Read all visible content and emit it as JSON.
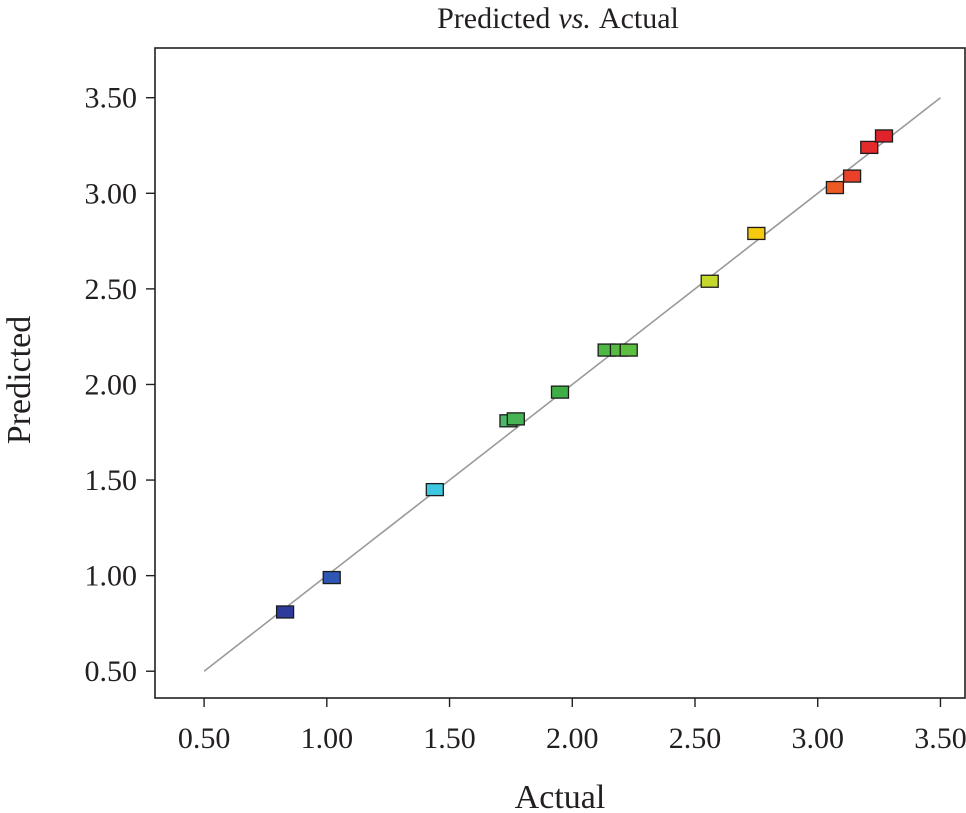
{
  "chart_data": {
    "type": "scatter",
    "title": "Predicted",
    "title_italic": "vs.",
    "title_suffix": "Actual",
    "xlabel": "Actual",
    "ylabel": "Predicted",
    "xlim": [
      0.3,
      3.6
    ],
    "ylim": [
      0.36,
      3.76
    ],
    "xticks": [
      "0.50",
      "1.00",
      "1.50",
      "2.00",
      "2.50",
      "3.00",
      "3.50"
    ],
    "yticks": [
      "0.50",
      "1.00",
      "1.50",
      "2.00",
      "2.50",
      "3.00",
      "3.50"
    ],
    "grid": false,
    "reference_line": {
      "from": [
        0.5,
        0.5
      ],
      "to": [
        3.5,
        3.5
      ],
      "color": "#9a9a9a"
    },
    "points": [
      {
        "x": 0.83,
        "y": 0.81,
        "color": "#2e3a9c"
      },
      {
        "x": 1.02,
        "y": 0.99,
        "color": "#2f56b5"
      },
      {
        "x": 1.44,
        "y": 1.45,
        "color": "#3ec7e3"
      },
      {
        "x": 1.74,
        "y": 1.81,
        "color": "#4fb868"
      },
      {
        "x": 1.77,
        "y": 1.82,
        "color": "#46b454"
      },
      {
        "x": 1.95,
        "y": 1.96,
        "color": "#3fae44"
      },
      {
        "x": 2.14,
        "y": 2.18,
        "color": "#4fb844"
      },
      {
        "x": 2.19,
        "y": 2.18,
        "color": "#55bb42"
      },
      {
        "x": 2.23,
        "y": 2.18,
        "color": "#5cbf42"
      },
      {
        "x": 2.56,
        "y": 2.54,
        "color": "#c4d92c"
      },
      {
        "x": 2.75,
        "y": 2.79,
        "color": "#f4c90e"
      },
      {
        "x": 3.07,
        "y": 3.03,
        "color": "#ee5a24"
      },
      {
        "x": 3.14,
        "y": 3.09,
        "color": "#e9412a"
      },
      {
        "x": 3.21,
        "y": 3.24,
        "color": "#e42a2a"
      },
      {
        "x": 3.27,
        "y": 3.3,
        "color": "#e0222a"
      }
    ]
  }
}
